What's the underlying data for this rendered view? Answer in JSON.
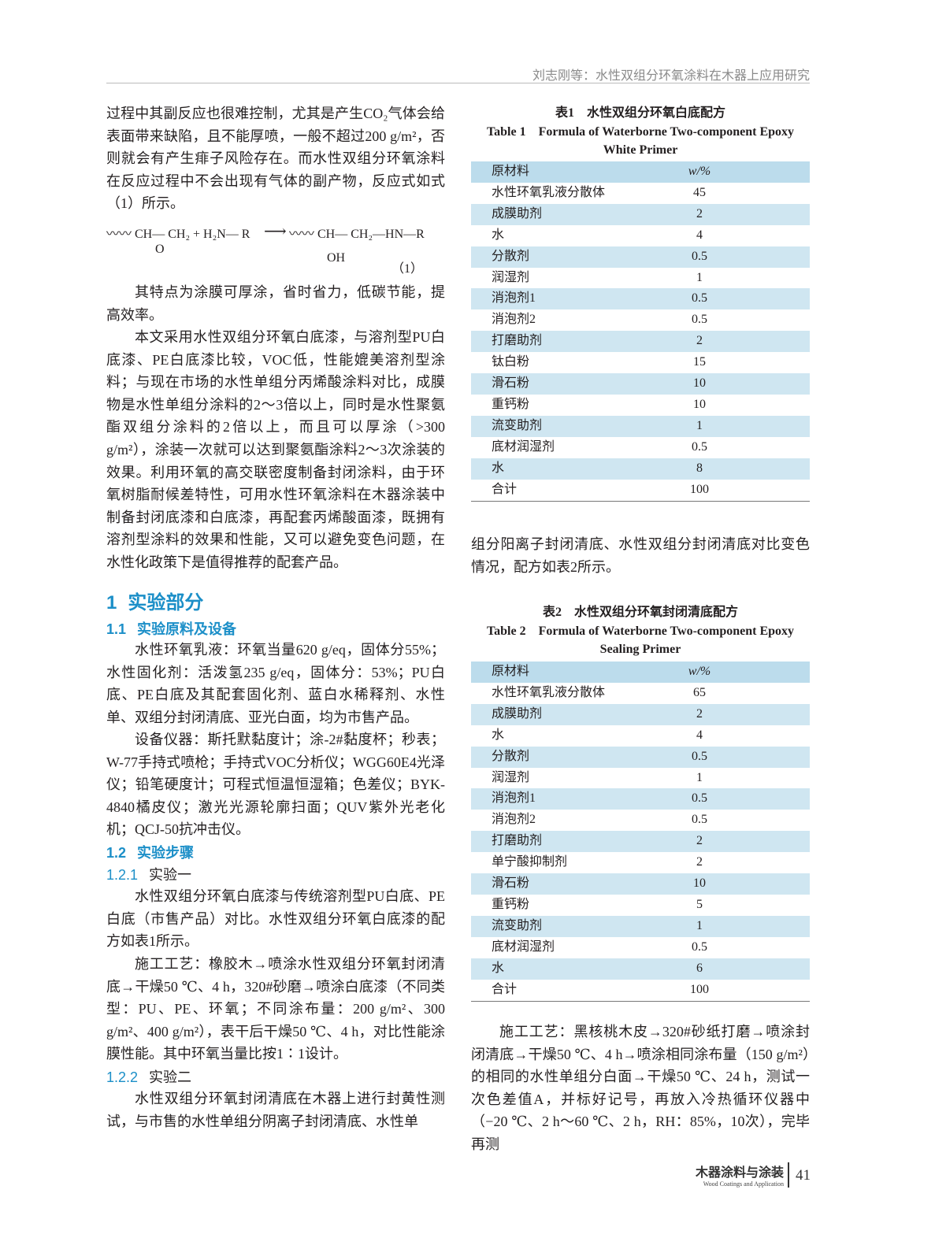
{
  "header": {
    "running_title": "刘志刚等：水性双组分环氧涂料在木器上应用研究"
  },
  "left": {
    "p1": "过程中其副反应也很难控制，尤其是产生CO₂气体会给表面带来缺陷，且不能厚喷，一般不超过200 g/m²，否则就会有产生痱子风险存在。而水性双组分环氧涂料在反应过程中不会出现有气体的副产物，反应式如式（1）所示。",
    "equation": {
      "reactants": "〰〰 CH— CH₂ + H₂N— R",
      "epoxide_oxygen": "O",
      "arrow": "⟶",
      "product": "〰〰 CH— CH₂—HN—R",
      "hydroxyl": "OH",
      "number": "（1）"
    },
    "p2": "其特点为涂膜可厚涂，省时省力，低碳节能，提高效率。",
    "p3": "本文采用水性双组分环氧白底漆，与溶剂型PU白底漆、PE白底漆比较，VOC低，性能媲美溶剂型涂料；与现在市场的水性单组分丙烯酸涂料对比，成膜物是水性单组分涂料的2～3倍以上，同时是水性聚氨酯双组分涂料的2倍以上，而且可以厚涂（>300 g/m²），涂装一次就可以达到聚氨酯涂料2～3次涂装的效果。利用环氧的高交联密度制备封闭涂料，由于环氧树脂耐候差特性，可用水性环氧涂料在木器涂装中制备封闭底漆和白底漆，再配套丙烯酸面漆，既拥有溶剂型涂料的效果和性能，又可以避免变色问题，在水性化政策下是值得推荐的配套产品。",
    "h1": {
      "number": "1",
      "title": "实验部分"
    },
    "h1_1": {
      "number": "1.1",
      "title": "实验原料及设备"
    },
    "p4": "水性环氧乳液：环氧当量620 g/eq，固体分55%；水性固化剂：活泼氢235 g/eq，固体分：53%；PU白底、PE白底及其配套固化剂、蓝白水稀释剂、水性单、双组分封闭清底、亚光白面，均为市售产品。",
    "p5": "设备仪器：斯托默黏度计；涂-2#黏度杯；秒表；W-77手持式喷枪；手持式VOC分析仪；WGG60E4光泽仪；铅笔硬度计；可程式恒温恒湿箱；色差仪；BYK-4840橘皮仪；激光光源轮廓扫面；QUV紫外光老化机；QCJ-50抗冲击仪。",
    "h1_2": {
      "number": "1.2",
      "title": "实验步骤"
    },
    "h1_2_1": {
      "number": "1.2.1",
      "title": "实验一"
    },
    "p6": "水性双组分环氧白底漆与传统溶剂型PU白底、PE白底（市售产品）对比。水性双组分环氧白底漆的配方如表1所示。",
    "p7": "施工工艺：橡胶木→喷涂水性双组分环氧封闭清底→干燥50 ℃、4 h，320#砂磨→喷涂白底漆（不同类型：PU、PE、环氧；不同涂布量：200 g/m²、300 g/m²、400 g/m²），表干后干燥50 ℃、4 h，对比性能涂膜性能。其中环氧当量比按1∶1设计。",
    "h1_2_2": {
      "number": "1.2.2",
      "title": "实验二"
    },
    "p8": "水性双组分环氧封闭清底在木器上进行封黄性测试，与市售的水性单组分阴离子封闭清底、水性单"
  },
  "right": {
    "table1": {
      "caption_cn": "表1　水性双组分环氧白底配方",
      "caption_en": "Table 1　Formula of Waterborne Two-component Epoxy White Primer",
      "columns": [
        "原材料",
        "w/%"
      ],
      "rows": [
        [
          "水性环氧乳液分散体",
          45
        ],
        [
          "成膜助剂",
          2
        ],
        [
          "水",
          4
        ],
        [
          "分散剂",
          0.5
        ],
        [
          "润湿剂",
          1
        ],
        [
          "消泡剂1",
          0.5
        ],
        [
          "消泡剂2",
          0.5
        ],
        [
          "打磨助剂",
          2
        ],
        [
          "钛白粉",
          15
        ],
        [
          "滑石粉",
          10
        ],
        [
          "重钙粉",
          10
        ],
        [
          "流变助剂",
          1
        ],
        [
          "底材润湿剂",
          0.5
        ],
        [
          "水",
          8
        ],
        [
          "合计",
          100
        ]
      ]
    },
    "p9": "组分阳离子封闭清底、水性双组分封闭清底对比变色情况，配方如表2所示。",
    "table2": {
      "caption_cn": "表2　水性双组分环氧封闭清底配方",
      "caption_en": "Table 2　Formula of Waterborne Two-component Epoxy Sealing Primer",
      "columns": [
        "原材料",
        "w/%"
      ],
      "rows": [
        [
          "水性环氧乳液分散体",
          65
        ],
        [
          "成膜助剂",
          2
        ],
        [
          "水",
          4
        ],
        [
          "分散剂",
          0.5
        ],
        [
          "润湿剂",
          1
        ],
        [
          "消泡剂1",
          0.5
        ],
        [
          "消泡剂2",
          0.5
        ],
        [
          "打磨助剂",
          2
        ],
        [
          "单宁酸抑制剂",
          2
        ],
        [
          "滑石粉",
          10
        ],
        [
          "重钙粉",
          5
        ],
        [
          "流变助剂",
          1
        ],
        [
          "底材润湿剂",
          0.5
        ],
        [
          "水",
          6
        ],
        [
          "合计",
          100
        ]
      ]
    },
    "p10": "施工工艺：黑核桃木皮→320#砂纸打磨→喷涂封闭清底→干燥50 ℃、4 h→喷涂相同涂布量（150 g/m²）的相同的水性单组分白面→干燥50 ℃、24 h，测试一次色差值A，并标好记号，再放入冷热循环仪器中（−20 ℃、2 h～60 ℃、2 h，RH：85%，10次），完毕再测"
  },
  "footer": {
    "journal_cn": "木器涂料与涂装",
    "journal_en": "Wood Coatings and Application",
    "page_number": "41"
  }
}
